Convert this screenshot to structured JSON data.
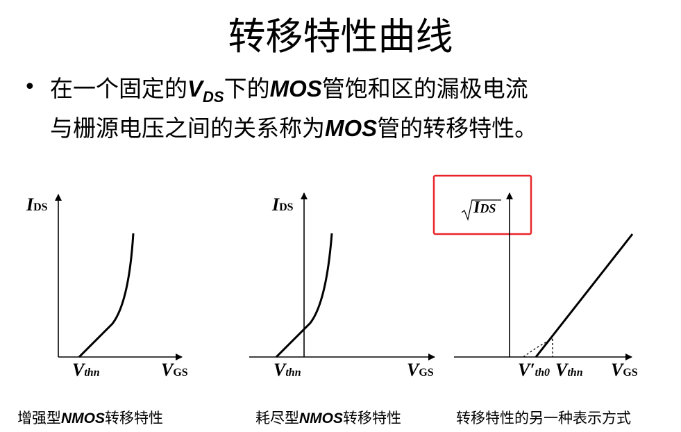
{
  "title": "转移特性曲线",
  "bullet": {
    "line1_a": "在一个固定的",
    "line1_v": "V",
    "line1_sub": "DS",
    "line1_b": "下的",
    "line1_mos": "MOS",
    "line1_c": "管饱和区的漏极电流",
    "line2_a": "与栅源电压之间的关系称为",
    "line2_mos": "MOS",
    "line2_b": "管的转移特性。"
  },
  "diagrams": [
    {
      "y_label": "I",
      "y_sub": "DS",
      "x_label": "V",
      "x_sub": "GS",
      "threshold": "V",
      "threshold_sub": "thn",
      "caption_a": "增强型",
      "caption_mos": "NMOS",
      "caption_b": "转移特性"
    },
    {
      "y_label": "I",
      "y_sub": "DS",
      "x_label": "V",
      "x_sub": "GS",
      "threshold": "V",
      "threshold_sub": "thn",
      "caption_a": "耗尽型",
      "caption_mos": "NMOS",
      "caption_b": "转移特性"
    },
    {
      "y_label": "I",
      "y_sub": "DS",
      "x_label": "V",
      "x_sub": "GS",
      "threshold0": "V′",
      "threshold0_sub": "th0",
      "threshold": "V",
      "threshold_sub": "thn",
      "caption": "转移特性的另一种表示方式"
    }
  ],
  "colors": {
    "highlight_box": "#e8262a"
  }
}
